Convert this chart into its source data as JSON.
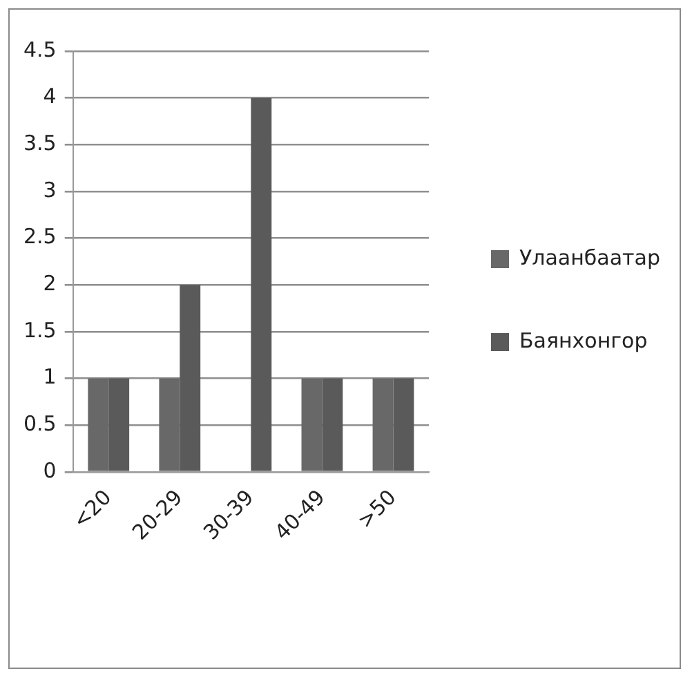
{
  "chart_data": {
    "type": "bar",
    "categories": [
      "<20",
      "20-29",
      "30-39",
      "40-49",
      ">50"
    ],
    "series": [
      {
        "name": "Улаанбаатар",
        "color": "#686868",
        "values": [
          1,
          1,
          0,
          1,
          1
        ]
      },
      {
        "name": "Баянхонгор",
        "color": "#5a5a5a",
        "values": [
          1,
          2,
          4,
          1,
          1
        ]
      }
    ],
    "ylim": [
      0,
      4.5
    ],
    "yticks": [
      0,
      0.5,
      1,
      1.5,
      2,
      2.5,
      3,
      3.5,
      4,
      4.5
    ],
    "grid": "y",
    "legend": "right"
  }
}
